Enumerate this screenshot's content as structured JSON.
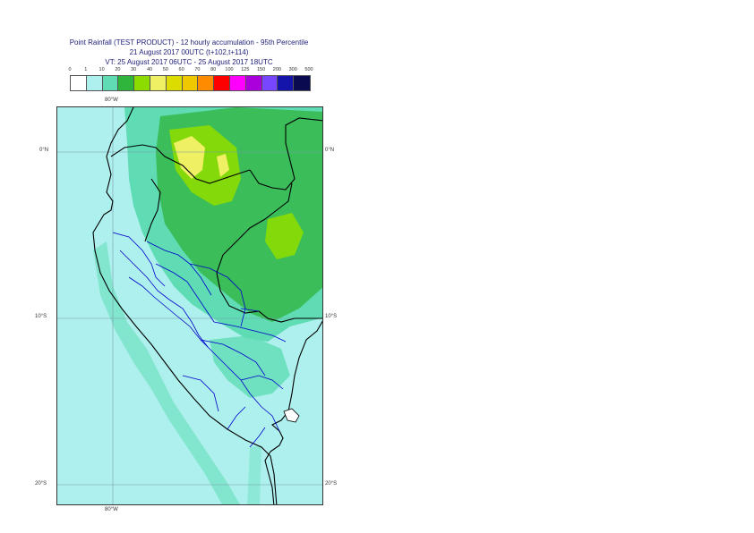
{
  "title": {
    "line1": "Point Rainfall (TEST PRODUCT) - 12 hourly accumulation - 95th Percentile",
    "line2": "21 August 2017 00UTC (t+102,t+114)",
    "line3": "VT: 25 August 2017 06UTC - 25 August 2017 18UTC"
  },
  "legend": {
    "ticks": [
      "0",
      "1",
      "10",
      "20",
      "30",
      "40",
      "50",
      "60",
      "70",
      "80",
      "100",
      "125",
      "150",
      "200",
      "300",
      "500"
    ],
    "colors": [
      "#ffffff",
      "#aef0ee",
      "#5fdcb4",
      "#2fb43c",
      "#8cdc00",
      "#f0f064",
      "#dcdc00",
      "#f0c800",
      "#ff8c00",
      "#ff0000",
      "#ff00ff",
      "#aa00dc",
      "#7846ff",
      "#1414aa",
      "#0a0a50"
    ]
  },
  "map": {
    "top_lon_label": "80°W",
    "bottom_lon_label": "80°W",
    "lat_labels": [
      "0°N",
      "10°S",
      "20°S"
    ],
    "ocean_color": "#aef0ee",
    "border_color": "#000000",
    "region_color": "#0000cc"
  }
}
